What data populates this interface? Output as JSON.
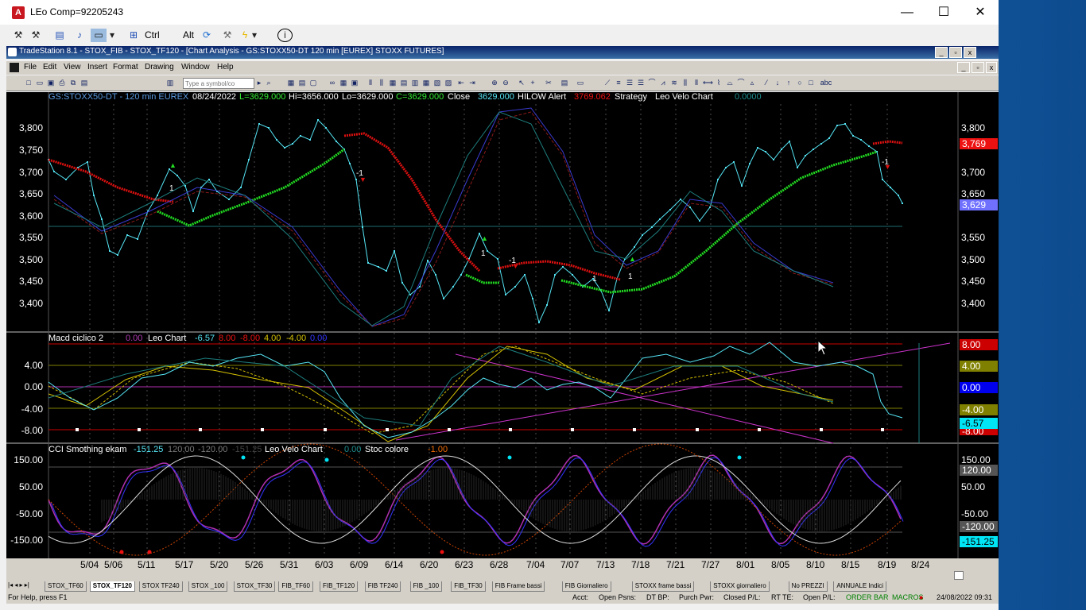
{
  "window": {
    "title": "LEo Comp=92205243",
    "minimize": "—",
    "maximize": "☐",
    "close": "✕"
  },
  "toolbar": {
    "ctrl": "Ctrl",
    "alt": "Alt"
  },
  "mdi": {
    "title": "TradeStation 8.1 - STOX_FIB - STOX_TF120 - [Chart Analysis - GS:STOXX50-DT  120 min  [EUREX] STOXX FUTURES]"
  },
  "menu": [
    "File",
    "Edit",
    "View",
    "Insert",
    "Format",
    "Drawing",
    "Window",
    "Help"
  ],
  "symbol_input": {
    "placeholder": "Type a symbol/co"
  },
  "price_panel": {
    "header": {
      "symbol": "GS:STOXX50-DT - 120 min  EUREX",
      "date": "08/24/2022",
      "last": "L=3629.000",
      "hi": "Hi=3656.000",
      "lo": "Lo=3629.000",
      "close": "C=3629.000",
      "close_lbl": "Close",
      "close_val": "3629.000",
      "hilow": "HILOW Alert",
      "hilow_val": "3769.062",
      "strategy": "Strategy",
      "velo": "Leo Velo Chart",
      "velo_val": "0.0000"
    },
    "ytick_labels": [
      "3,800",
      "3,750",
      "3,700",
      "3,650",
      "3,600",
      "3,550",
      "3,500",
      "3,450",
      "3,400"
    ],
    "tag_red": "3,769",
    "tag_blue": "3,629",
    "signals": [
      "1",
      "-1",
      "1",
      "-1",
      "1",
      "1",
      "-1"
    ]
  },
  "macd_panel": {
    "header": {
      "name": "Macd ciclico 2",
      "v1": "0.00",
      "leo": "Leo Chart",
      "v2": "-6.57",
      "v3": "8.00",
      "v4": "-8.00",
      "v5": "4.00",
      "v6": "-4.00",
      "v7": "0.00"
    },
    "ytick_labels": [
      "4.00",
      "0.00",
      "-4.00",
      "-8.00"
    ],
    "tags": [
      "8.00",
      "4.00",
      "0.00",
      "-4.00",
      "-6.57",
      "-8.00"
    ]
  },
  "cci_panel": {
    "header": {
      "name": "CCI Smothing ekam",
      "v1": "-151.25",
      "v2": "120.00",
      "v3": "-120.00",
      "v4": "-151.25",
      "velo": "Leo Velo Chart",
      "v5": "0.00",
      "stoc": "Stoc colore",
      "v6": "-1.00"
    },
    "ytick_labels": [
      "150.00",
      "50.00",
      "-50.00",
      "-150.00"
    ],
    "right_labels": [
      "150.00",
      "120.00",
      "50.00",
      "-50.00",
      "-120.00"
    ],
    "tag_cyan": "-151.25"
  },
  "xaxis_labels": [
    "5/04",
    "5/06",
    "5/11",
    "5/17",
    "5/20",
    "5/26",
    "5/31",
    "6/03",
    "6/09",
    "6/14",
    "6/20",
    "6/23",
    "6/28",
    "7/04",
    "7/07",
    "7/13",
    "7/18",
    "7/21",
    "7/27",
    "8/01",
    "8/05",
    "8/10",
    "8/15",
    "8/19",
    "8/24"
  ],
  "sheets": [
    "STOX_TF60",
    "STOX_TF120",
    "STOX TF240",
    "STOX _100",
    "STOX_TF30",
    "FIB_TF60",
    "FIB_TF120",
    "FIB TF240",
    "FIB _100",
    "FIB_TF30",
    "FIB Frame bassi",
    "FIB Giornaliero",
    "STOXX frame bassi",
    "STOXX giornaliero",
    "No PREZZI",
    "ANNUALE Indici"
  ],
  "active_sheet": 1,
  "status": {
    "help": "For Help, press F1",
    "acct": "Acct:",
    "open_psns": "Open Psns:",
    "dt_bp": "DT BP:",
    "purch": "Purch Pwr:",
    "closed": "Closed P/L:",
    "rt": "RT TE:",
    "open_pl": "Open P/L:",
    "order_bar": "ORDER BAR",
    "macros": "MACROS",
    "datetime": "24/08/2022 09:31"
  },
  "colors": {
    "ma_green": "#33ee33",
    "ma_red": "#ee1111",
    "price": "#55e5f5",
    "header_bg": "#0a246a"
  }
}
